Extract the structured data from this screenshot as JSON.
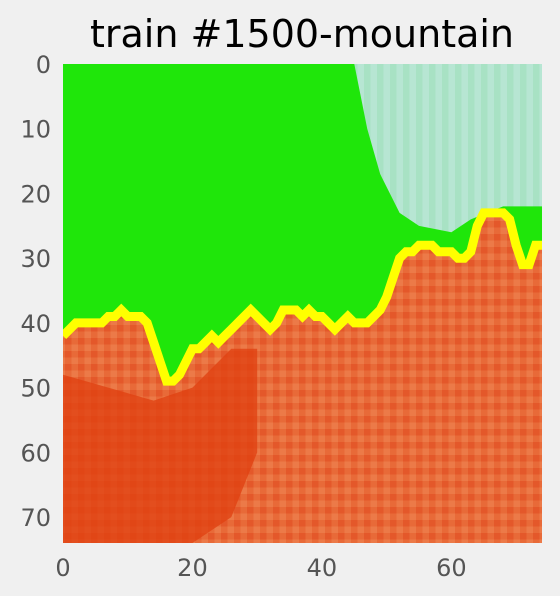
{
  "chart_data": {
    "type": "heatmap",
    "title": "train #1500-mountain",
    "xlabel": "",
    "ylabel": "",
    "xlim": [
      0,
      74
    ],
    "ylim": [
      74,
      0
    ],
    "x_ticks": [
      0,
      20,
      40,
      60
    ],
    "y_ticks": [
      0,
      10,
      20,
      30,
      40,
      50,
      60,
      70
    ],
    "grid": false,
    "regions": {
      "sky_green_color": "#1fe60a",
      "sky_pale_color": "#b5e5d2",
      "boundary_color": "#ffff00",
      "mountain_color": "#e65a28",
      "mountain_dark_color": "#e04010"
    },
    "boundary_y": [
      42,
      41,
      40,
      40,
      40,
      40,
      40,
      39,
      39,
      38,
      39,
      39,
      39,
      40,
      43,
      46,
      49,
      49,
      48,
      46,
      44,
      44,
      43,
      42,
      43,
      42,
      41,
      40,
      39,
      38,
      39,
      40,
      41,
      40,
      38,
      38,
      38,
      39,
      38,
      39,
      39,
      40,
      41,
      40,
      39,
      40,
      40,
      40,
      39,
      38,
      36,
      33,
      30,
      29,
      29,
      28,
      28,
      28,
      29,
      29,
      29,
      30,
      30,
      29,
      25,
      23,
      23,
      23,
      23,
      24,
      28,
      31,
      31,
      28,
      28
    ],
    "pale_region_edge_y": [
      [
        45,
        0
      ],
      [
        47,
        10
      ],
      [
        49,
        17
      ],
      [
        52,
        23
      ],
      [
        55,
        25
      ],
      [
        60,
        26
      ],
      [
        63,
        24
      ],
      [
        68,
        22
      ],
      [
        74,
        22
      ]
    ]
  }
}
